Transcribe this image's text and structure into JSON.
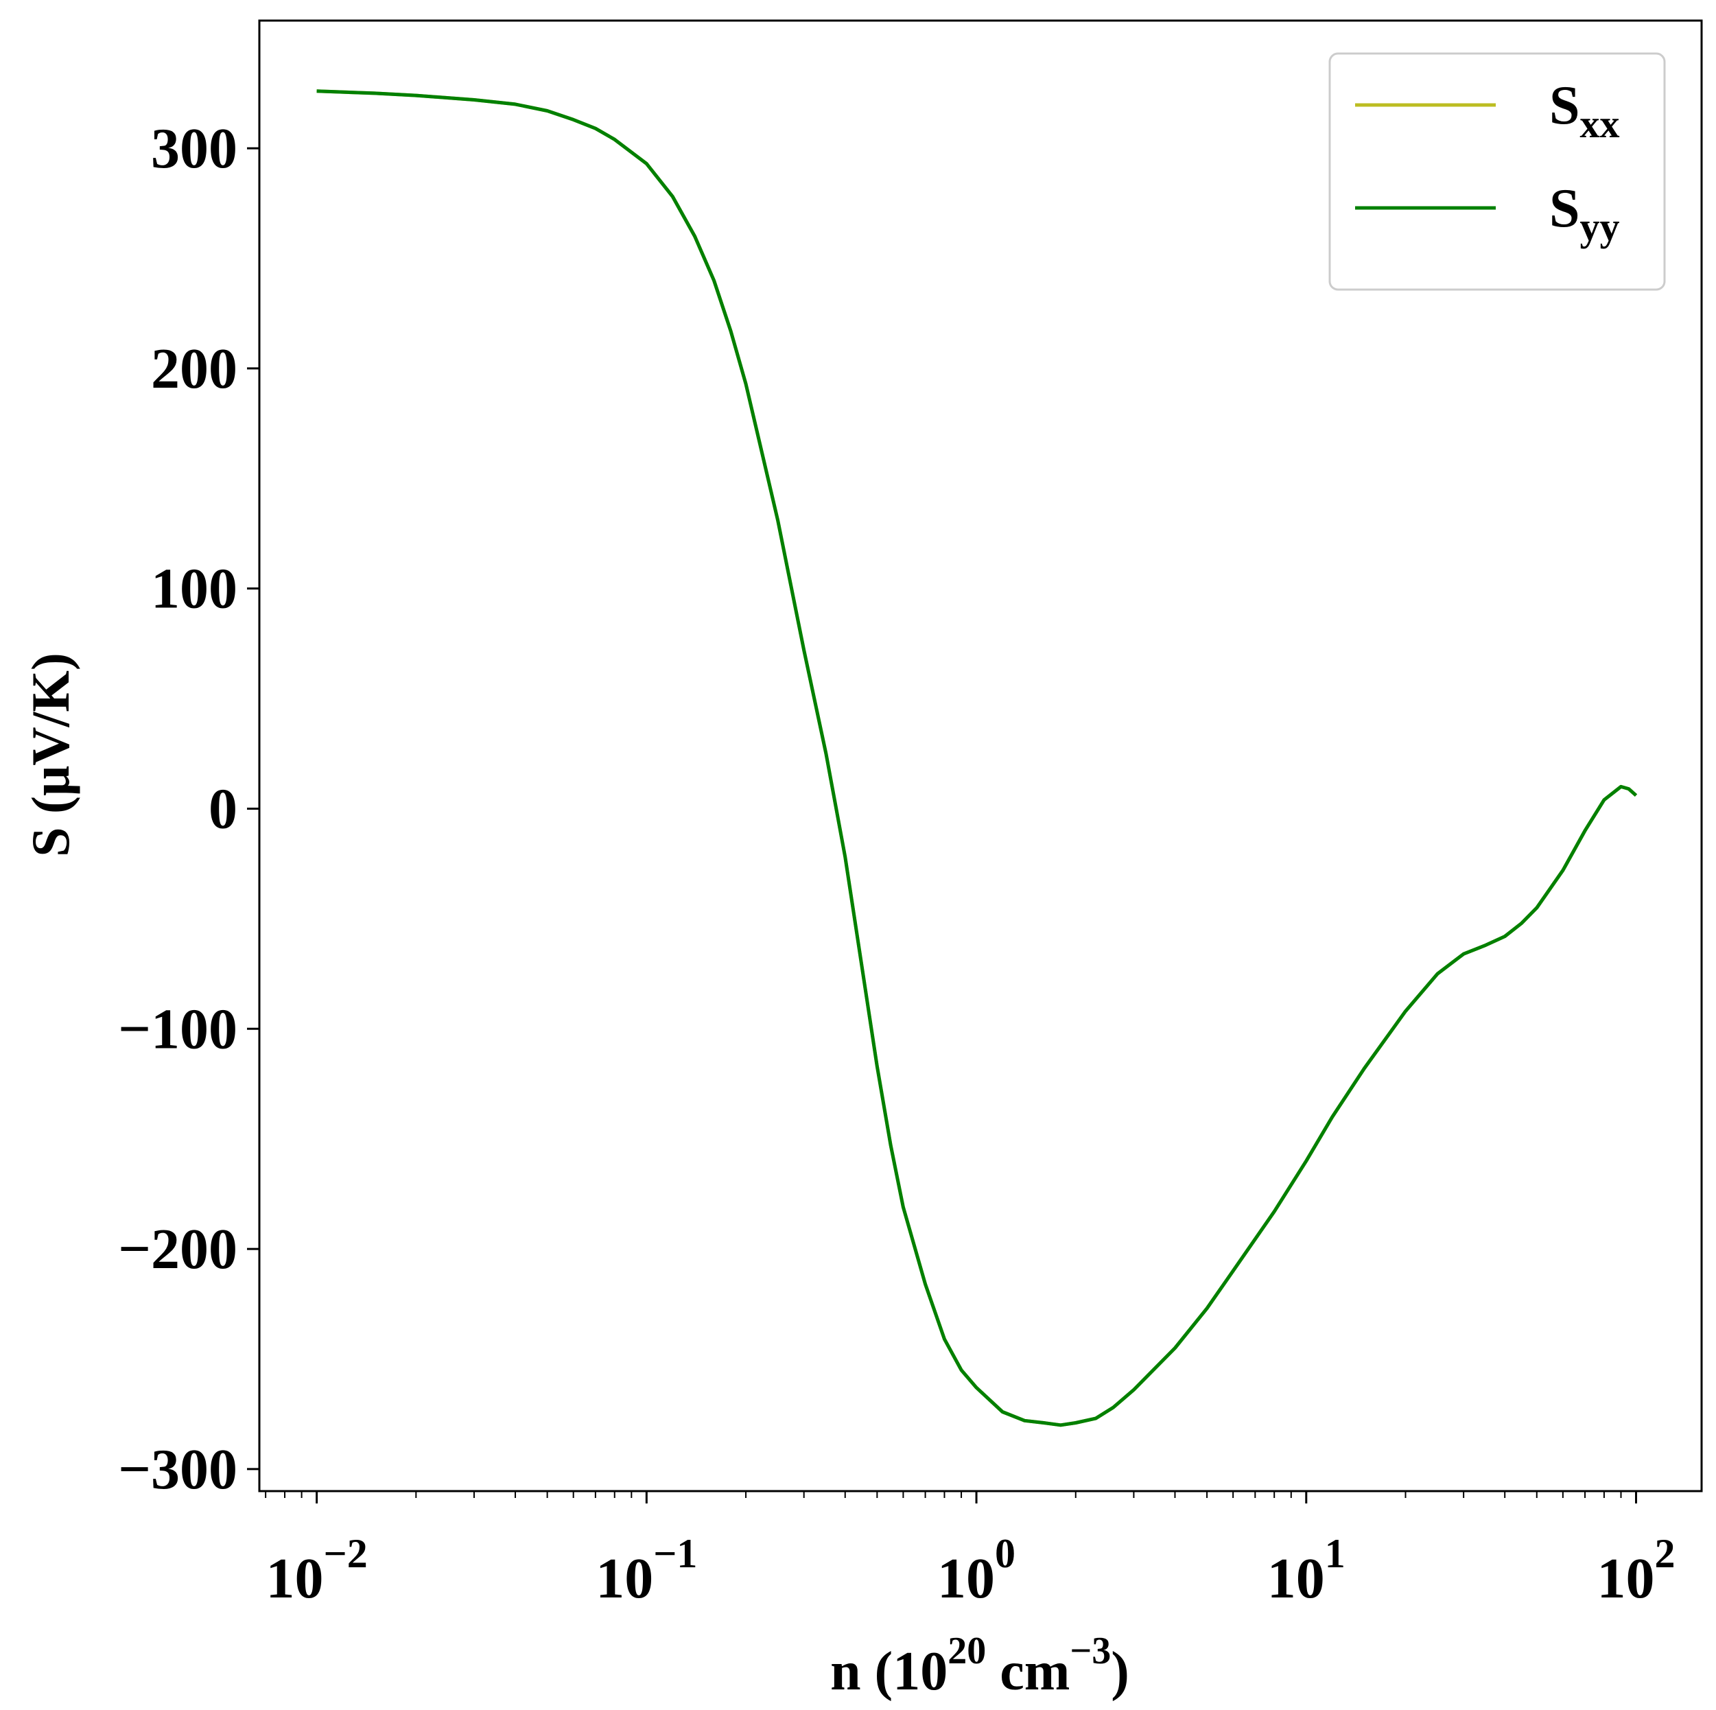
{
  "chart_data": {
    "type": "line",
    "xscale": "log",
    "xlim": [
      0.0067,
      158
    ],
    "ylim": [
      -310,
      358
    ],
    "xlabel": {
      "prefix": "n (10",
      "sup1": "20",
      "mid": " cm",
      "sup2": "−3",
      "suffix": ")"
    },
    "ylabel": "S (μV/K)",
    "x_ticks": [
      {
        "value": 0.01,
        "base": "10",
        "exp": "−2"
      },
      {
        "value": 0.1,
        "base": "10",
        "exp": "−1"
      },
      {
        "value": 1,
        "base": "10",
        "exp": "0"
      },
      {
        "value": 10,
        "base": "10",
        "exp": "1"
      },
      {
        "value": 100,
        "base": "10",
        "exp": "2"
      }
    ],
    "y_ticks": [
      {
        "value": 300,
        "label": "300"
      },
      {
        "value": 200,
        "label": "200"
      },
      {
        "value": 100,
        "label": "100"
      },
      {
        "value": 0,
        "label": "0"
      },
      {
        "value": -100,
        "label": "−100"
      },
      {
        "value": -200,
        "label": "−200"
      },
      {
        "value": -300,
        "label": "−300"
      }
    ],
    "grid": false,
    "legend_position": "top-right",
    "series": [
      {
        "name": {
          "base": "S",
          "sub": "xx"
        },
        "color": "#bcbd22",
        "x": [
          0.01,
          0.015,
          0.02,
          0.03,
          0.04,
          0.05,
          0.06,
          0.07,
          0.08,
          0.1,
          0.12,
          0.14,
          0.16,
          0.18,
          0.2,
          0.25,
          0.3,
          0.35,
          0.4,
          0.45,
          0.5,
          0.55,
          0.6,
          0.7,
          0.8,
          0.9,
          1.0,
          1.2,
          1.4,
          1.6,
          1.8,
          2.0,
          2.3,
          2.6,
          3.0,
          4.0,
          5.0,
          6.0,
          8.0,
          10,
          12,
          15,
          20,
          25,
          30,
          35,
          40,
          45,
          50,
          60,
          70,
          80,
          90,
          95,
          100
        ],
        "y": [
          326,
          325,
          324,
          322,
          320,
          317,
          313,
          309,
          304,
          293,
          278,
          260,
          240,
          217,
          193,
          131,
          72,
          25,
          -22,
          -72,
          -117,
          -153,
          -181,
          -216,
          -241,
          -255,
          -263,
          -274,
          -278,
          -279,
          -280,
          -279,
          -277,
          -272,
          -264,
          -245,
          -227,
          -210,
          -183,
          -160,
          -140,
          -118,
          -92,
          -75,
          -66,
          -62,
          -58,
          -52,
          -45,
          -28,
          -10,
          4,
          10,
          9,
          6
        ]
      },
      {
        "name": {
          "base": "S",
          "sub": "yy"
        },
        "color": "#008000",
        "x": [
          0.01,
          0.015,
          0.02,
          0.03,
          0.04,
          0.05,
          0.06,
          0.07,
          0.08,
          0.1,
          0.12,
          0.14,
          0.16,
          0.18,
          0.2,
          0.25,
          0.3,
          0.35,
          0.4,
          0.45,
          0.5,
          0.55,
          0.6,
          0.7,
          0.8,
          0.9,
          1.0,
          1.2,
          1.4,
          1.6,
          1.8,
          2.0,
          2.3,
          2.6,
          3.0,
          4.0,
          5.0,
          6.0,
          8.0,
          10,
          12,
          15,
          20,
          25,
          30,
          35,
          40,
          45,
          50,
          60,
          70,
          80,
          90,
          95,
          100
        ],
        "y": [
          326,
          325,
          324,
          322,
          320,
          317,
          313,
          309,
          304,
          293,
          278,
          260,
          240,
          217,
          193,
          131,
          72,
          25,
          -22,
          -72,
          -117,
          -153,
          -181,
          -216,
          -241,
          -255,
          -263,
          -274,
          -278,
          -279,
          -280,
          -279,
          -277,
          -272,
          -264,
          -245,
          -227,
          -210,
          -183,
          -160,
          -140,
          -118,
          -92,
          -75,
          -66,
          -62,
          -58,
          -52,
          -45,
          -28,
          -10,
          4,
          10,
          9,
          6
        ]
      }
    ]
  }
}
